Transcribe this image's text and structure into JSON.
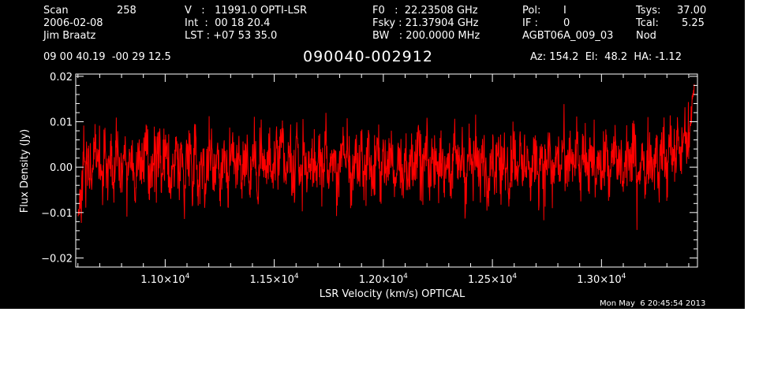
{
  "header": {
    "scan_label": "Scan",
    "scan_value": "258",
    "date": "2006-02-08",
    "observer": "Jim Braatz",
    "v_line": "V   :   11991.0 OPTI-LSR",
    "int_line": "Int  :  00 18 20.4",
    "lst_line": "LST : +07 53 35.0",
    "f0_line": "F0   :  22.23508 GHz",
    "fsky_line": "Fsky : 21.37904 GHz",
    "bw_line": "BW   : 200.0000 MHz",
    "pol_label": "Pol:",
    "pol_value": "I",
    "if_label": "IF :",
    "if_value": "0",
    "project": "AGBT06A_009_03",
    "tsys_label": "Tsys:",
    "tsys_value": "37.00",
    "tcal_label": "Tcal:",
    "tcal_value": "5.25",
    "mode": "Nod",
    "coords": "09 00 40.19  -00 29 12.5",
    "source": "090040-002912",
    "az_el_ha": "Az: 154.2  El:  48.2  HA: -1.12",
    "timestamp": "Mon May  6 20:45:54 2013"
  },
  "chart_data": {
    "type": "line",
    "title": "",
    "xlabel": "LSR Velocity (km/s) OPTICAL",
    "ylabel": "Flux Density (Jy)",
    "xlim": [
      10590,
      13440
    ],
    "ylim": [
      -0.022,
      0.0205
    ],
    "xticks": [
      11000,
      11500,
      12000,
      12500,
      13000
    ],
    "xtick_labels": [
      {
        "mant": "1.10×10",
        "exp": "4"
      },
      {
        "mant": "1.15×10",
        "exp": "4"
      },
      {
        "mant": "1.20×10",
        "exp": "4"
      },
      {
        "mant": "1.25×10",
        "exp": "4"
      },
      {
        "mant": "1.30×10",
        "exp": "4"
      }
    ],
    "yticks": [
      -0.02,
      -0.01,
      0.0,
      0.01,
      0.02
    ],
    "ytick_labels": [
      "−0.02",
      "−0.01",
      "0.00",
      "0.01",
      "0.02"
    ],
    "line_color": "#ff0000",
    "series": [
      {
        "x_start": 10600,
        "x_end": 13425,
        "y": [
          -0.012,
          -0.008,
          0.002,
          -0.004,
          0.004,
          -0.003,
          0.006,
          -0.002,
          0.003,
          -0.004,
          0.005,
          -0.001,
          0.002,
          -0.005,
          0.004,
          0.0,
          -0.003,
          0.006,
          -0.002,
          0.001,
          0.004,
          -0.006,
          0.002,
          0.003,
          -0.002,
          0.005,
          -0.004,
          0.001,
          0.003,
          -0.001,
          0.006,
          -0.003,
          0.002,
          0.004,
          -0.005,
          0.001,
          0.005,
          -0.002,
          0.003,
          -0.004,
          0.002,
          0.004,
          -0.001,
          0.006,
          -0.003,
          0.0,
          0.003,
          -0.005,
          0.004,
          0.002,
          -0.002,
          0.005,
          -0.003,
          0.001,
          0.004,
          -0.004,
          0.002,
          0.003,
          -0.001,
          0.005,
          -0.002,
          0.001,
          0.004,
          -0.006,
          0.003,
          0.002,
          -0.003,
          0.005,
          0.0,
          -0.002,
          0.004,
          -0.004,
          0.002,
          0.003,
          -0.001,
          0.006,
          -0.003,
          0.001,
          0.002,
          -0.005,
          0.004,
          0.001,
          -0.002,
          0.005,
          -0.003,
          0.002,
          0.003,
          -0.004,
          0.001,
          0.004,
          -0.002,
          0.006,
          -0.003,
          0.001,
          0.003,
          -0.005,
          0.002,
          0.004,
          -0.001,
          0.005,
          -0.004,
          0.0,
          0.003,
          -0.002,
          0.006,
          -0.003,
          0.002,
          0.004,
          -0.005,
          0.001,
          0.003,
          -0.002,
          0.005,
          -0.003,
          0.002,
          0.004,
          -0.004,
          0.001,
          0.005,
          -0.002,
          0.003,
          -0.005,
          0.002,
          0.003,
          -0.001,
          0.005,
          -0.003,
          0.001,
          0.004,
          -0.004,
          0.002,
          0.003,
          -0.002,
          0.006,
          -0.003,
          0.001,
          0.003,
          -0.005,
          0.004,
          0.002,
          -0.001,
          0.005,
          -0.004,
          0.002,
          0.003,
          -0.002,
          0.005,
          -0.003,
          0.001,
          0.004,
          -0.005,
          0.002,
          0.004,
          -0.002,
          0.006,
          -0.003,
          0.001,
          0.003,
          -0.004,
          0.002,
          0.005,
          -0.001,
          0.004,
          -0.003,
          0.002,
          0.003,
          -0.005,
          0.001,
          0.004,
          -0.002,
          0.005,
          -0.003,
          0.002,
          0.004,
          -0.004,
          0.001,
          0.003,
          -0.002,
          0.006,
          -0.004,
          0.002,
          0.003,
          -0.001,
          0.005,
          -0.003,
          0.001,
          0.004,
          -0.005,
          0.002,
          0.003,
          -0.002,
          0.005,
          -0.003,
          0.002,
          0.004,
          -0.004,
          0.001,
          0.005,
          -0.002,
          0.003,
          -0.004,
          0.002,
          0.004,
          -0.001,
          0.006,
          -0.003,
          0.001,
          0.003,
          -0.004,
          0.004,
          0.003,
          -0.001,
          0.006,
          -0.002,
          0.004,
          0.003,
          -0.002,
          0.006,
          0.004,
          0.001,
          0.007,
          0.002,
          0.006,
          0.008,
          0.004,
          0.011,
          0.017
        ]
      }
    ]
  }
}
